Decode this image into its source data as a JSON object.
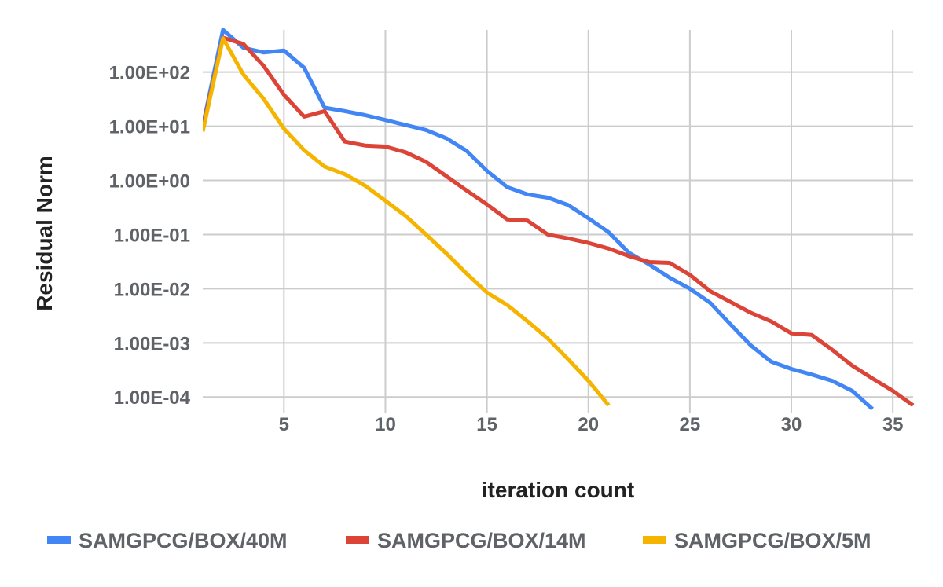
{
  "chart_data": {
    "type": "line",
    "title": "",
    "xlabel": "iteration count",
    "ylabel": "Residual Norm",
    "x_scale": "linear",
    "y_scale": "log",
    "xlim": [
      1,
      36
    ],
    "ylim": [
      5e-05,
      600
    ],
    "x_ticks": [
      5,
      10,
      15,
      20,
      25,
      30,
      35
    ],
    "x_tick_labels": [
      "5",
      "10",
      "15",
      "20",
      "25",
      "30",
      "35"
    ],
    "y_ticks": [
      0.0001,
      0.001,
      0.01,
      0.1,
      1,
      10,
      100
    ],
    "y_tick_labels": [
      "1.00E-04",
      "1.00E-03",
      "1.00E-02",
      "1.00E-01",
      "1.00E+00",
      "1.00E+01",
      "1.00E+02"
    ],
    "grid": true,
    "legend_position": "bottom",
    "series": [
      {
        "name": "SAMGPCG/BOX/40M",
        "color": "#4285f4",
        "x": [
          1,
          2,
          3,
          4,
          5,
          6,
          7,
          8,
          9,
          10,
          11,
          12,
          13,
          14,
          15,
          16,
          17,
          18,
          19,
          20,
          21,
          22,
          23,
          24,
          25,
          26,
          27,
          28,
          29,
          30,
          31,
          32,
          33,
          34
        ],
        "y": [
          10,
          600,
          280,
          230,
          250,
          120,
          22,
          19,
          16,
          13,
          10.5,
          8.5,
          6,
          3.5,
          1.5,
          0.75,
          0.55,
          0.48,
          0.35,
          0.2,
          0.11,
          0.046,
          0.028,
          0.016,
          0.01,
          0.0055,
          0.0022,
          0.0009,
          0.00045,
          0.00033,
          0.00026,
          0.0002,
          0.00013,
          6e-05
        ]
      },
      {
        "name": "SAMGPCG/BOX/14M",
        "color": "#db4437",
        "x": [
          1,
          2,
          3,
          4,
          5,
          6,
          7,
          8,
          9,
          10,
          11,
          12,
          13,
          14,
          15,
          16,
          17,
          18,
          19,
          20,
          21,
          22,
          23,
          24,
          25,
          26,
          27,
          28,
          29,
          30,
          31,
          32,
          33,
          34,
          35,
          36
        ],
        "y": [
          9,
          430,
          330,
          130,
          38,
          15,
          19,
          5.2,
          4.4,
          4.2,
          3.3,
          2.2,
          1.2,
          0.65,
          0.36,
          0.19,
          0.18,
          0.1,
          0.085,
          0.07,
          0.055,
          0.04,
          0.031,
          0.03,
          0.018,
          0.009,
          0.0057,
          0.0036,
          0.0025,
          0.0015,
          0.0014,
          0.00075,
          0.00038,
          0.00022,
          0.00013,
          7e-05
        ]
      },
      {
        "name": "SAMGPCG/BOX/5M",
        "color": "#f4b400",
        "x": [
          1,
          2,
          3,
          4,
          5,
          6,
          7,
          8,
          9,
          10,
          11,
          12,
          13,
          14,
          15,
          16,
          17,
          18,
          19,
          20,
          21
        ],
        "y": [
          8,
          420,
          90,
          32,
          9,
          3.6,
          1.8,
          1.3,
          0.8,
          0.42,
          0.22,
          0.1,
          0.045,
          0.019,
          0.0085,
          0.005,
          0.0025,
          0.0012,
          0.0005,
          0.0002,
          7e-05
        ]
      }
    ]
  }
}
